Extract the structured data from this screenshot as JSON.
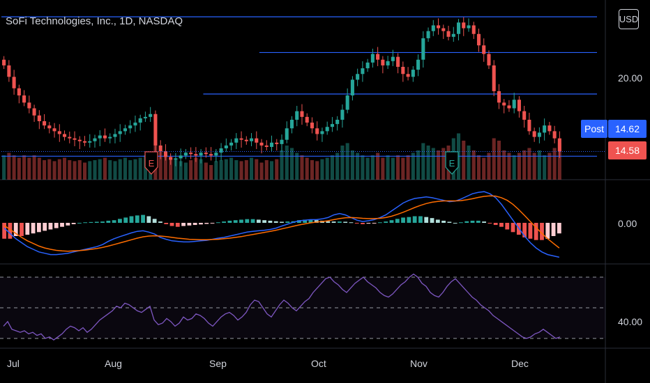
{
  "header": {
    "title": "SoFi Technologies, Inc., 1D, NASDAQ",
    "currency": "USD"
  },
  "colors": {
    "up": "#26a69a",
    "down": "#ef5350",
    "level_line": "#2962ff",
    "macd": "#2962ff",
    "signal": "#ff6d00",
    "rsi": "#7e57c2",
    "post_tag": "#2962ff",
    "last_tag": "#ef5350"
  },
  "price_tags": {
    "post_label": "Post",
    "post_price": "14.62",
    "last_price": "14.58"
  },
  "earnings_markers": [
    "E",
    "E"
  ],
  "chart_data": [
    {
      "type": "candlestick",
      "title": "SoFi Technologies, Inc., 1D, NASDAQ",
      "x_ticks": [
        "Jul",
        "Aug",
        "Sep",
        "Oct",
        "Nov",
        "Dec"
      ],
      "y_ticks": [
        "20.00"
      ],
      "ylim": [
        13.0,
        24.2
      ],
      "last_price": 14.58,
      "post_price": 14.62,
      "horizontal_levels": [
        {
          "value": 24.0,
          "from": "Jul",
          "to": "Dec"
        },
        {
          "value": 21.5,
          "from": "Oct",
          "to": "Dec"
        },
        {
          "value": 18.6,
          "from": "Sep",
          "to": "Dec"
        },
        {
          "value": 14.25,
          "from": "Jul",
          "to": "Dec"
        }
      ],
      "close": [
        20.6,
        19.8,
        19.0,
        18.5,
        18.0,
        17.6,
        17.1,
        16.7,
        16.4,
        16.2,
        16.0,
        15.8,
        15.6,
        15.5,
        15.4,
        15.3,
        15.2,
        15.3,
        15.5,
        15.7,
        15.5,
        15.6,
        15.8,
        16.0,
        16.2,
        16.4,
        16.6,
        16.9,
        17.0,
        17.2,
        15.0,
        14.6,
        14.2,
        14.0,
        14.1,
        14.3,
        14.5,
        14.4,
        14.3,
        14.5,
        14.4,
        14.3,
        14.5,
        14.8,
        15.0,
        15.2,
        15.5,
        15.4,
        15.3,
        15.5,
        15.2,
        15.0,
        14.9,
        15.2,
        15.1,
        15.4,
        16.2,
        16.8,
        17.4,
        17.0,
        16.6,
        16.2,
        15.8,
        16.0,
        16.3,
        16.5,
        16.8,
        17.5,
        18.5,
        19.6,
        20.0,
        20.4,
        20.8,
        21.4,
        21.0,
        20.6,
        20.9,
        21.2,
        20.5,
        20.0,
        19.8,
        20.3,
        21.0,
        22.5,
        23.0,
        23.4,
        23.2,
        23.0,
        22.6,
        22.8,
        23.6,
        23.2,
        23.4,
        22.8,
        22.0,
        21.4,
        20.6,
        18.8,
        18.0,
        17.8,
        17.6,
        18.2,
        17.4,
        16.8,
        16.0,
        15.6,
        15.9,
        16.4,
        16.0,
        15.5,
        14.58
      ],
      "volume": [
        0.5,
        0.55,
        0.5,
        0.45,
        0.5,
        0.45,
        0.5,
        0.45,
        0.4,
        0.42,
        0.38,
        0.42,
        0.45,
        0.4,
        0.38,
        0.4,
        0.35,
        0.38,
        0.4,
        0.42,
        0.45,
        0.4,
        0.38,
        0.42,
        0.45,
        0.4,
        0.42,
        0.45,
        0.5,
        0.55,
        0.7,
        0.6,
        0.5,
        0.45,
        0.4,
        0.38,
        0.35,
        0.4,
        0.45,
        0.42,
        0.35,
        0.3,
        0.38,
        0.4,
        0.42,
        0.45,
        0.4,
        0.38,
        0.4,
        0.45,
        0.42,
        0.35,
        0.4,
        0.38,
        0.42,
        0.6,
        0.7,
        0.65,
        0.55,
        0.5,
        0.45,
        0.4,
        0.38,
        0.42,
        0.45,
        0.5,
        0.55,
        0.7,
        0.75,
        0.6,
        0.55,
        0.5,
        0.45,
        0.5,
        0.55,
        0.45,
        0.5,
        0.45,
        0.5,
        0.45,
        0.5,
        0.55,
        0.6,
        0.75,
        0.7,
        0.65,
        0.6,
        0.65,
        0.7,
        0.85,
        0.95,
        0.8,
        0.7,
        0.6,
        0.5,
        0.45,
        0.55,
        0.85,
        0.8,
        0.6,
        0.55,
        0.5,
        0.55,
        0.6,
        0.65,
        0.55,
        0.6,
        0.5,
        0.55,
        0.65,
        0.75
      ]
    },
    {
      "type": "line",
      "name_hint": "MACD",
      "y_ticks": [
        "0.00"
      ],
      "zero": 0.0,
      "macd": [
        -0.2,
        -0.4,
        -0.6,
        -0.75,
        -0.9,
        -1.0,
        -1.1,
        -1.15,
        -1.2,
        -1.2,
        -1.18,
        -1.15,
        -1.1,
        -1.05,
        -1.0,
        -0.95,
        -0.9,
        -0.82,
        -0.7,
        -0.6,
        -0.52,
        -0.45,
        -0.38,
        -0.32,
        -0.3,
        -0.35,
        -0.42,
        -0.55,
        -0.62,
        -0.68,
        -0.7,
        -0.72,
        -0.72,
        -0.7,
        -0.68,
        -0.66,
        -0.62,
        -0.58,
        -0.55,
        -0.5,
        -0.45,
        -0.4,
        -0.35,
        -0.32,
        -0.3,
        -0.28,
        -0.25,
        -0.2,
        -0.12,
        -0.05,
        0.02,
        0.08,
        0.1,
        0.12,
        0.12,
        0.15,
        0.2,
        0.3,
        0.35,
        0.3,
        0.2,
        0.1,
        0.05,
        0.08,
        0.12,
        0.2,
        0.3,
        0.45,
        0.6,
        0.75,
        0.85,
        0.92,
        0.95,
        0.98,
        0.95,
        0.9,
        0.85,
        0.8,
        0.82,
        0.9,
        1.0,
        1.1,
        1.15,
        1.18,
        1.1,
        0.95,
        0.7,
        0.4,
        0.1,
        -0.2,
        -0.5,
        -0.75,
        -0.95,
        -1.1,
        -1.2,
        -1.25,
        -1.3
      ],
      "signal": [
        -0.1,
        -0.25,
        -0.4,
        -0.55,
        -0.68,
        -0.78,
        -0.88,
        -0.95,
        -1.0,
        -1.04,
        -1.06,
        -1.07,
        -1.06,
        -1.05,
        -1.03,
        -1.0,
        -0.97,
        -0.93,
        -0.88,
        -0.82,
        -0.76,
        -0.7,
        -0.64,
        -0.58,
        -0.53,
        -0.5,
        -0.49,
        -0.5,
        -0.52,
        -0.55,
        -0.58,
        -0.6,
        -0.62,
        -0.63,
        -0.64,
        -0.64,
        -0.63,
        -0.62,
        -0.6,
        -0.58,
        -0.55,
        -0.52,
        -0.48,
        -0.44,
        -0.4,
        -0.36,
        -0.32,
        -0.28,
        -0.23,
        -0.18,
        -0.13,
        -0.08,
        -0.04,
        0.0,
        0.03,
        0.05,
        0.08,
        0.12,
        0.16,
        0.19,
        0.2,
        0.19,
        0.17,
        0.16,
        0.16,
        0.17,
        0.2,
        0.25,
        0.32,
        0.4,
        0.49,
        0.58,
        0.66,
        0.73,
        0.78,
        0.81,
        0.83,
        0.83,
        0.83,
        0.84,
        0.87,
        0.91,
        0.96,
        1.0,
        1.02,
        1.01,
        0.95,
        0.85,
        0.7,
        0.5,
        0.28,
        0.05,
        -0.18,
        -0.4,
        -0.6,
        -0.78,
        -0.95
      ],
      "histogram": [
        -0.6,
        -0.6,
        -0.5,
        -0.5,
        -0.45,
        -0.4,
        -0.35,
        -0.3,
        -0.25,
        -0.2,
        -0.15,
        -0.1,
        -0.05,
        0.0,
        0.02,
        0.03,
        0.04,
        0.05,
        0.08,
        0.1,
        0.15,
        0.2,
        0.25,
        0.28,
        0.3,
        0.25,
        0.15,
        0.05,
        -0.05,
        -0.12,
        -0.15,
        -0.12,
        -0.1,
        -0.08,
        -0.06,
        -0.04,
        -0.02,
        0.02,
        0.05,
        0.08,
        0.1,
        0.12,
        0.14,
        0.14,
        0.12,
        0.1,
        0.08,
        0.06,
        0.04,
        0.05,
        0.06,
        0.1,
        0.12,
        0.12,
        0.1,
        0.08,
        0.06,
        0.05,
        0.05,
        0.04,
        0.02,
        -0.02,
        -0.05,
        -0.03,
        -0.02,
        0.02,
        0.05,
        0.1,
        0.15,
        0.2,
        0.22,
        0.25,
        0.25,
        0.22,
        0.18,
        0.12,
        0.08,
        0.04,
        0.0,
        0.02,
        0.06,
        0.08,
        0.08,
        0.05,
        -0.02,
        -0.08,
        -0.15,
        -0.25,
        -0.35,
        -0.45,
        -0.55,
        -0.6,
        -0.65,
        -0.65,
        -0.6,
        -0.5,
        -0.4
      ]
    },
    {
      "type": "line",
      "name_hint": "RSI",
      "y_ticks": [
        "40.00"
      ],
      "bands": [
        70,
        50,
        30
      ],
      "ylim": [
        28,
        72
      ],
      "values": [
        38,
        41,
        36,
        35,
        34,
        35,
        33,
        34,
        32,
        33,
        30,
        31,
        29,
        31,
        33,
        36,
        38,
        37,
        35,
        37,
        34,
        36,
        39,
        42,
        44,
        46,
        48,
        51,
        50,
        53,
        52,
        50,
        48,
        47,
        49,
        51,
        42,
        39,
        40,
        43,
        41,
        38,
        40,
        44,
        42,
        43,
        46,
        45,
        43,
        40,
        38,
        41,
        44,
        46,
        47,
        45,
        42,
        44,
        47,
        52,
        55,
        54,
        50,
        46,
        44,
        48,
        52,
        55,
        53,
        50,
        48,
        51,
        54,
        56,
        60,
        63,
        66,
        69,
        70,
        67,
        65,
        62,
        60,
        63,
        66,
        68,
        70,
        67,
        65,
        63,
        60,
        58,
        57,
        59,
        62,
        65,
        67,
        70,
        72,
        70,
        66,
        64,
        60,
        58,
        57,
        60,
        64,
        67,
        69,
        66,
        63,
        60,
        57,
        55,
        52,
        50,
        48,
        45,
        43,
        41,
        39,
        37,
        35,
        33,
        31,
        30,
        31,
        33,
        34,
        36,
        34,
        32,
        30,
        31
      ]
    }
  ]
}
